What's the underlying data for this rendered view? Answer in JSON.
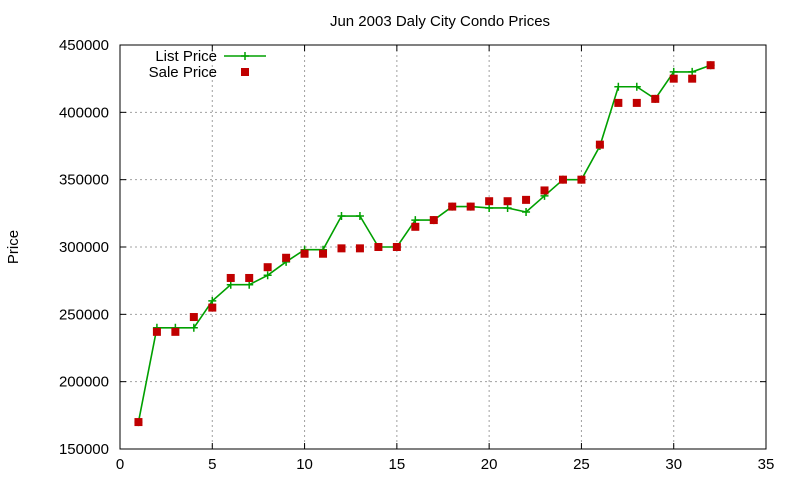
{
  "chart_data": {
    "type": "line",
    "title": "Jun 2003 Daly City Condo Prices",
    "xlabel": "",
    "ylabel": "Price",
    "xlim": [
      0,
      35
    ],
    "ylim": [
      150000,
      450000
    ],
    "xticks": [
      0,
      5,
      10,
      15,
      20,
      25,
      30,
      35
    ],
    "yticks": [
      150000,
      200000,
      250000,
      300000,
      350000,
      400000,
      450000
    ],
    "grid": true,
    "legend_position": "top-left",
    "series": [
      {
        "name": "List Price",
        "style": "line+cross",
        "color": "#00a000",
        "x": [
          1,
          2,
          3,
          4,
          5,
          6,
          7,
          8,
          9,
          10,
          11,
          12,
          13,
          14,
          15,
          16,
          17,
          18,
          19,
          20,
          21,
          22,
          23,
          24,
          25,
          26,
          27,
          28,
          29,
          30,
          31,
          32
        ],
        "y": [
          170000,
          240000,
          240000,
          240000,
          260000,
          272000,
          272000,
          279000,
          289000,
          298000,
          298000,
          323000,
          323000,
          300000,
          300000,
          320000,
          320000,
          330000,
          330000,
          329000,
          329000,
          326000,
          338000,
          350000,
          350000,
          375000,
          419000,
          419000,
          410000,
          430000,
          430000,
          435000
        ]
      },
      {
        "name": "Sale Price",
        "style": "square",
        "color": "#c00000",
        "x": [
          1,
          2,
          3,
          4,
          5,
          6,
          7,
          8,
          9,
          10,
          11,
          12,
          13,
          14,
          15,
          16,
          17,
          18,
          19,
          20,
          21,
          22,
          23,
          24,
          25,
          26,
          27,
          28,
          29,
          30,
          31,
          32
        ],
        "y": [
          170000,
          237000,
          237000,
          248000,
          255000,
          277000,
          277000,
          285000,
          292000,
          295000,
          295000,
          299000,
          299000,
          300000,
          300000,
          315000,
          320000,
          330000,
          330000,
          334000,
          334000,
          335000,
          342000,
          350000,
          350000,
          376000,
          407000,
          407000,
          410000,
          425000,
          425000,
          435000
        ]
      }
    ]
  }
}
